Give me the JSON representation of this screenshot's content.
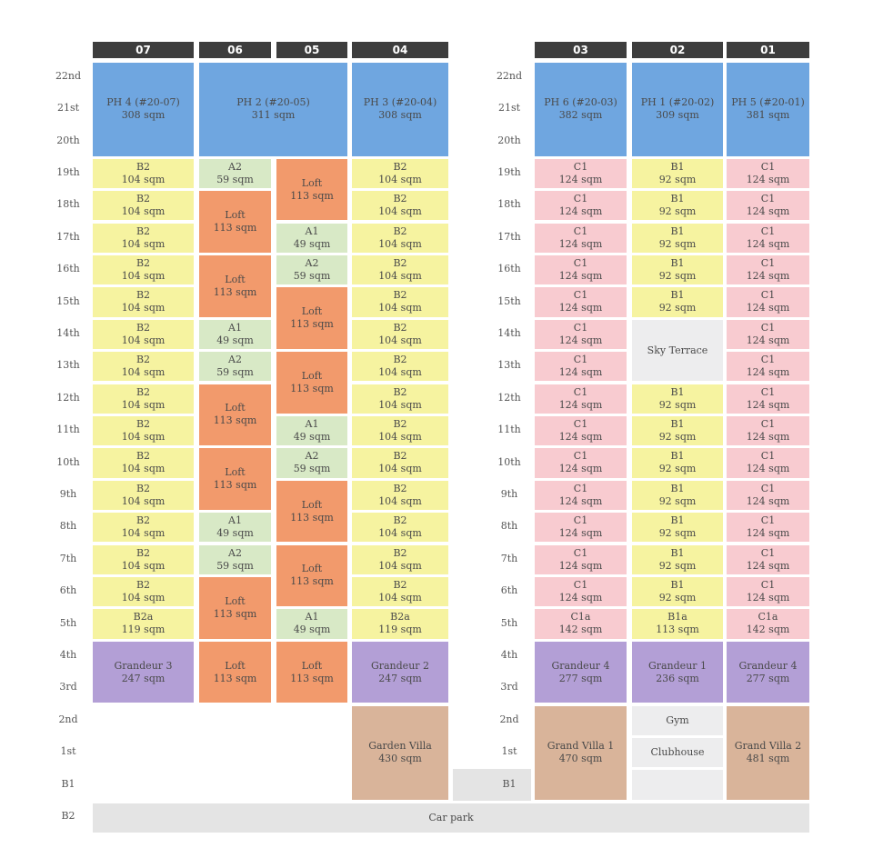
{
  "colors": {
    "header_bg": "#3d3d3d",
    "penthouse": "#6fa6e0",
    "type_a": "#d8e9c6",
    "type_b": "#f6f3a0",
    "type_c": "#f8cbd0",
    "loft": "#f29a6c",
    "grandeur": "#b39fd6",
    "villa": "#d9b49a",
    "amenity": "#ededee",
    "carpark": "#e4e4e4"
  },
  "stacks": [
    "07",
    "06",
    "05",
    "04",
    "03",
    "02",
    "01"
  ],
  "floors": [
    "22nd",
    "21st",
    "20th",
    "19th",
    "18th",
    "17th",
    "16th",
    "15th",
    "14th",
    "13th",
    "12th",
    "11th",
    "10th",
    "9th",
    "8th",
    "7th",
    "6th",
    "5th",
    "4th",
    "3rd",
    "2nd",
    "1st",
    "B1",
    "B2"
  ],
  "units": [
    {
      "stack": "07",
      "top": "22nd",
      "bottom": "20th",
      "kind": "penthouse",
      "name": "PH 4 (#20-07)",
      "area": "308 sqm"
    },
    {
      "stack": "06",
      "stack_to": "05",
      "top": "22nd",
      "bottom": "20th",
      "kind": "penthouse",
      "name": "PH 2 (#20-05)",
      "area": "311 sqm"
    },
    {
      "stack": "04",
      "top": "22nd",
      "bottom": "20th",
      "kind": "penthouse",
      "name": "PH 3 (#20-04)",
      "area": "308 sqm"
    },
    {
      "stack": "03",
      "top": "22nd",
      "bottom": "20th",
      "kind": "penthouse",
      "name": "PH 6 (#20-03)",
      "area": "382 sqm"
    },
    {
      "stack": "02",
      "top": "22nd",
      "bottom": "20th",
      "kind": "penthouse",
      "name": "PH 1 (#20-02)",
      "area": "309 sqm"
    },
    {
      "stack": "01",
      "top": "22nd",
      "bottom": "20th",
      "kind": "penthouse",
      "name": "PH 5 (#20-01)",
      "area": "381 sqm"
    },
    {
      "stack": "07",
      "top": "19th",
      "bottom": "19th",
      "kind": "type_b",
      "name": "B2",
      "area": "104 sqm"
    },
    {
      "stack": "07",
      "top": "18th",
      "bottom": "18th",
      "kind": "type_b",
      "name": "B2",
      "area": "104 sqm"
    },
    {
      "stack": "07",
      "top": "17th",
      "bottom": "17th",
      "kind": "type_b",
      "name": "B2",
      "area": "104 sqm"
    },
    {
      "stack": "07",
      "top": "16th",
      "bottom": "16th",
      "kind": "type_b",
      "name": "B2",
      "area": "104 sqm"
    },
    {
      "stack": "07",
      "top": "15th",
      "bottom": "15th",
      "kind": "type_b",
      "name": "B2",
      "area": "104 sqm"
    },
    {
      "stack": "07",
      "top": "14th",
      "bottom": "14th",
      "kind": "type_b",
      "name": "B2",
      "area": "104 sqm"
    },
    {
      "stack": "07",
      "top": "13th",
      "bottom": "13th",
      "kind": "type_b",
      "name": "B2",
      "area": "104 sqm"
    },
    {
      "stack": "07",
      "top": "12th",
      "bottom": "12th",
      "kind": "type_b",
      "name": "B2",
      "area": "104 sqm"
    },
    {
      "stack": "07",
      "top": "11th",
      "bottom": "11th",
      "kind": "type_b",
      "name": "B2",
      "area": "104 sqm"
    },
    {
      "stack": "07",
      "top": "10th",
      "bottom": "10th",
      "kind": "type_b",
      "name": "B2",
      "area": "104 sqm"
    },
    {
      "stack": "07",
      "top": "9th",
      "bottom": "9th",
      "kind": "type_b",
      "name": "B2",
      "area": "104 sqm"
    },
    {
      "stack": "07",
      "top": "8th",
      "bottom": "8th",
      "kind": "type_b",
      "name": "B2",
      "area": "104 sqm"
    },
    {
      "stack": "07",
      "top": "7th",
      "bottom": "7th",
      "kind": "type_b",
      "name": "B2",
      "area": "104 sqm"
    },
    {
      "stack": "07",
      "top": "6th",
      "bottom": "6th",
      "kind": "type_b",
      "name": "B2",
      "area": "104 sqm"
    },
    {
      "stack": "07",
      "top": "5th",
      "bottom": "5th",
      "kind": "type_b",
      "name": "B2a",
      "area": "119 sqm"
    },
    {
      "stack": "07",
      "top": "4th",
      "bottom": "3rd",
      "kind": "grandeur",
      "name": "Grandeur 3",
      "area": "247 sqm"
    },
    {
      "stack": "06",
      "top": "19th",
      "bottom": "19th",
      "kind": "type_a",
      "name": "A2",
      "area": "59 sqm"
    },
    {
      "stack": "06",
      "top": "18th",
      "bottom": "17th",
      "kind": "loft",
      "name": "Loft",
      "area": "113 sqm"
    },
    {
      "stack": "06",
      "top": "16th",
      "bottom": "15th",
      "kind": "loft",
      "name": "Loft",
      "area": "113 sqm"
    },
    {
      "stack": "06",
      "top": "14th",
      "bottom": "14th",
      "kind": "type_a",
      "name": "A1",
      "area": "49 sqm"
    },
    {
      "stack": "06",
      "top": "13th",
      "bottom": "13th",
      "kind": "type_a",
      "name": "A2",
      "area": "59 sqm"
    },
    {
      "stack": "06",
      "top": "12th",
      "bottom": "11th",
      "kind": "loft",
      "name": "Loft",
      "area": "113 sqm"
    },
    {
      "stack": "06",
      "top": "10th",
      "bottom": "9th",
      "kind": "loft",
      "name": "Loft",
      "area": "113 sqm"
    },
    {
      "stack": "06",
      "top": "8th",
      "bottom": "8th",
      "kind": "type_a",
      "name": "A1",
      "area": "49 sqm"
    },
    {
      "stack": "06",
      "top": "7th",
      "bottom": "7th",
      "kind": "type_a",
      "name": "A2",
      "area": "59 sqm"
    },
    {
      "stack": "06",
      "top": "6th",
      "bottom": "5th",
      "kind": "loft",
      "name": "Loft",
      "area": "113 sqm"
    },
    {
      "stack": "06",
      "top": "4th",
      "bottom": "3rd",
      "kind": "loft",
      "name": "Loft",
      "area": "113 sqm"
    },
    {
      "stack": "05",
      "top": "19th",
      "bottom": "18th",
      "kind": "loft",
      "name": "Loft",
      "area": "113 sqm"
    },
    {
      "stack": "05",
      "top": "17th",
      "bottom": "17th",
      "kind": "type_a",
      "name": "A1",
      "area": "49 sqm"
    },
    {
      "stack": "05",
      "top": "16th",
      "bottom": "16th",
      "kind": "type_a",
      "name": "A2",
      "area": "59 sqm"
    },
    {
      "stack": "05",
      "top": "15th",
      "bottom": "14th",
      "kind": "loft",
      "name": "Loft",
      "area": "113 sqm"
    },
    {
      "stack": "05",
      "top": "13th",
      "bottom": "12th",
      "kind": "loft",
      "name": "Loft",
      "area": "113 sqm"
    },
    {
      "stack": "05",
      "top": "11th",
      "bottom": "11th",
      "kind": "type_a",
      "name": "A1",
      "area": "49 sqm"
    },
    {
      "stack": "05",
      "top": "10th",
      "bottom": "10th",
      "kind": "type_a",
      "name": "A2",
      "area": "59 sqm"
    },
    {
      "stack": "05",
      "top": "9th",
      "bottom": "8th",
      "kind": "loft",
      "name": "Loft",
      "area": "113 sqm"
    },
    {
      "stack": "05",
      "top": "7th",
      "bottom": "6th",
      "kind": "loft",
      "name": "Loft",
      "area": "113 sqm"
    },
    {
      "stack": "05",
      "top": "5th",
      "bottom": "5th",
      "kind": "type_a",
      "name": "A1",
      "area": "49 sqm"
    },
    {
      "stack": "05",
      "top": "4th",
      "bottom": "3rd",
      "kind": "loft",
      "name": "Loft",
      "area": "113 sqm"
    },
    {
      "stack": "04",
      "top": "19th",
      "bottom": "19th",
      "kind": "type_b",
      "name": "B2",
      "area": "104 sqm"
    },
    {
      "stack": "04",
      "top": "18th",
      "bottom": "18th",
      "kind": "type_b",
      "name": "B2",
      "area": "104 sqm"
    },
    {
      "stack": "04",
      "top": "17th",
      "bottom": "17th",
      "kind": "type_b",
      "name": "B2",
      "area": "104 sqm"
    },
    {
      "stack": "04",
      "top": "16th",
      "bottom": "16th",
      "kind": "type_b",
      "name": "B2",
      "area": "104 sqm"
    },
    {
      "stack": "04",
      "top": "15th",
      "bottom": "15th",
      "kind": "type_b",
      "name": "B2",
      "area": "104 sqm"
    },
    {
      "stack": "04",
      "top": "14th",
      "bottom": "14th",
      "kind": "type_b",
      "name": "B2",
      "area": "104 sqm"
    },
    {
      "stack": "04",
      "top": "13th",
      "bottom": "13th",
      "kind": "type_b",
      "name": "B2",
      "area": "104 sqm"
    },
    {
      "stack": "04",
      "top": "12th",
      "bottom": "12th",
      "kind": "type_b",
      "name": "B2",
      "area": "104 sqm"
    },
    {
      "stack": "04",
      "top": "11th",
      "bottom": "11th",
      "kind": "type_b",
      "name": "B2",
      "area": "104 sqm"
    },
    {
      "stack": "04",
      "top": "10th",
      "bottom": "10th",
      "kind": "type_b",
      "name": "B2",
      "area": "104 sqm"
    },
    {
      "stack": "04",
      "top": "9th",
      "bottom": "9th",
      "kind": "type_b",
      "name": "B2",
      "area": "104 sqm"
    },
    {
      "stack": "04",
      "top": "8th",
      "bottom": "8th",
      "kind": "type_b",
      "name": "B2",
      "area": "104 sqm"
    },
    {
      "stack": "04",
      "top": "7th",
      "bottom": "7th",
      "kind": "type_b",
      "name": "B2",
      "area": "104 sqm"
    },
    {
      "stack": "04",
      "top": "6th",
      "bottom": "6th",
      "kind": "type_b",
      "name": "B2",
      "area": "104 sqm"
    },
    {
      "stack": "04",
      "top": "5th",
      "bottom": "5th",
      "kind": "type_b",
      "name": "B2a",
      "area": "119 sqm"
    },
    {
      "stack": "04",
      "top": "4th",
      "bottom": "3rd",
      "kind": "grandeur",
      "name": "Grandeur 2",
      "area": "247 sqm"
    },
    {
      "stack": "04",
      "top": "2nd",
      "bottom": "B1",
      "kind": "villa",
      "name": "Garden Villa",
      "area": "430 sqm"
    },
    {
      "stack": "03",
      "top": "19th",
      "bottom": "19th",
      "kind": "type_c",
      "name": "C1",
      "area": "124 sqm"
    },
    {
      "stack": "03",
      "top": "18th",
      "bottom": "18th",
      "kind": "type_c",
      "name": "C1",
      "area": "124 sqm"
    },
    {
      "stack": "03",
      "top": "17th",
      "bottom": "17th",
      "kind": "type_c",
      "name": "C1",
      "area": "124 sqm"
    },
    {
      "stack": "03",
      "top": "16th",
      "bottom": "16th",
      "kind": "type_c",
      "name": "C1",
      "area": "124 sqm"
    },
    {
      "stack": "03",
      "top": "15th",
      "bottom": "15th",
      "kind": "type_c",
      "name": "C1",
      "area": "124 sqm"
    },
    {
      "stack": "03",
      "top": "14th",
      "bottom": "14th",
      "kind": "type_c",
      "name": "C1",
      "area": "124 sqm"
    },
    {
      "stack": "03",
      "top": "13th",
      "bottom": "13th",
      "kind": "type_c",
      "name": "C1",
      "area": "124 sqm"
    },
    {
      "stack": "03",
      "top": "12th",
      "bottom": "12th",
      "kind": "type_c",
      "name": "C1",
      "area": "124 sqm"
    },
    {
      "stack": "03",
      "top": "11th",
      "bottom": "11th",
      "kind": "type_c",
      "name": "C1",
      "area": "124 sqm"
    },
    {
      "stack": "03",
      "top": "10th",
      "bottom": "10th",
      "kind": "type_c",
      "name": "C1",
      "area": "124 sqm"
    },
    {
      "stack": "03",
      "top": "9th",
      "bottom": "9th",
      "kind": "type_c",
      "name": "C1",
      "area": "124 sqm"
    },
    {
      "stack": "03",
      "top": "8th",
      "bottom": "8th",
      "kind": "type_c",
      "name": "C1",
      "area": "124 sqm"
    },
    {
      "stack": "03",
      "top": "7th",
      "bottom": "7th",
      "kind": "type_c",
      "name": "C1",
      "area": "124 sqm"
    },
    {
      "stack": "03",
      "top": "6th",
      "bottom": "6th",
      "kind": "type_c",
      "name": "C1",
      "area": "124 sqm"
    },
    {
      "stack": "03",
      "top": "5th",
      "bottom": "5th",
      "kind": "type_c",
      "name": "C1a",
      "area": "142 sqm"
    },
    {
      "stack": "03",
      "top": "4th",
      "bottom": "3rd",
      "kind": "grandeur",
      "name": "Grandeur 4",
      "area": "277 sqm"
    },
    {
      "stack": "03",
      "top": "2nd",
      "bottom": "B1",
      "kind": "villa",
      "name": "Grand Villa 1",
      "area": "470 sqm"
    },
    {
      "stack": "02",
      "top": "19th",
      "bottom": "19th",
      "kind": "type_b",
      "name": "B1",
      "area": "92 sqm"
    },
    {
      "stack": "02",
      "top": "18th",
      "bottom": "18th",
      "kind": "type_b",
      "name": "B1",
      "area": "92 sqm"
    },
    {
      "stack": "02",
      "top": "17th",
      "bottom": "17th",
      "kind": "type_b",
      "name": "B1",
      "area": "92 sqm"
    },
    {
      "stack": "02",
      "top": "16th",
      "bottom": "16th",
      "kind": "type_b",
      "name": "B1",
      "area": "92 sqm"
    },
    {
      "stack": "02",
      "top": "15th",
      "bottom": "15th",
      "kind": "type_b",
      "name": "B1",
      "area": "92 sqm"
    },
    {
      "stack": "02",
      "top": "14th",
      "bottom": "13th",
      "kind": "amenity",
      "name": "Sky Terrace",
      "area": ""
    },
    {
      "stack": "02",
      "top": "12th",
      "bottom": "12th",
      "kind": "type_b",
      "name": "B1",
      "area": "92 sqm"
    },
    {
      "stack": "02",
      "top": "11th",
      "bottom": "11th",
      "kind": "type_b",
      "name": "B1",
      "area": "92 sqm"
    },
    {
      "stack": "02",
      "top": "10th",
      "bottom": "10th",
      "kind": "type_b",
      "name": "B1",
      "area": "92 sqm"
    },
    {
      "stack": "02",
      "top": "9th",
      "bottom": "9th",
      "kind": "type_b",
      "name": "B1",
      "area": "92 sqm"
    },
    {
      "stack": "02",
      "top": "8th",
      "bottom": "8th",
      "kind": "type_b",
      "name": "B1",
      "area": "92 sqm"
    },
    {
      "stack": "02",
      "top": "7th",
      "bottom": "7th",
      "kind": "type_b",
      "name": "B1",
      "area": "92 sqm"
    },
    {
      "stack": "02",
      "top": "6th",
      "bottom": "6th",
      "kind": "type_b",
      "name": "B1",
      "area": "92 sqm"
    },
    {
      "stack": "02",
      "top": "5th",
      "bottom": "5th",
      "kind": "type_b",
      "name": "B1a",
      "area": "113 sqm"
    },
    {
      "stack": "02",
      "top": "4th",
      "bottom": "3rd",
      "kind": "grandeur",
      "name": "Grandeur 1",
      "area": "236 sqm"
    },
    {
      "stack": "02",
      "top": "2nd",
      "bottom": "2nd",
      "kind": "amenity",
      "name": "Gym",
      "area": ""
    },
    {
      "stack": "02",
      "top": "1st",
      "bottom": "1st",
      "kind": "amenity",
      "name": "Clubhouse",
      "area": ""
    },
    {
      "stack": "02",
      "top": "B1",
      "bottom": "B1",
      "kind": "amenity",
      "name": "",
      "area": ""
    },
    {
      "stack": "01",
      "top": "19th",
      "bottom": "19th",
      "kind": "type_c",
      "name": "C1",
      "area": "124 sqm"
    },
    {
      "stack": "01",
      "top": "18th",
      "bottom": "18th",
      "kind": "type_c",
      "name": "C1",
      "area": "124 sqm"
    },
    {
      "stack": "01",
      "top": "17th",
      "bottom": "17th",
      "kind": "type_c",
      "name": "C1",
      "area": "124 sqm"
    },
    {
      "stack": "01",
      "top": "16th",
      "bottom": "16th",
      "kind": "type_c",
      "name": "C1",
      "area": "124 sqm"
    },
    {
      "stack": "01",
      "top": "15th",
      "bottom": "15th",
      "kind": "type_c",
      "name": "C1",
      "area": "124 sqm"
    },
    {
      "stack": "01",
      "top": "14th",
      "bottom": "14th",
      "kind": "type_c",
      "name": "C1",
      "area": "124 sqm"
    },
    {
      "stack": "01",
      "top": "13th",
      "bottom": "13th",
      "kind": "type_c",
      "name": "C1",
      "area": "124 sqm"
    },
    {
      "stack": "01",
      "top": "12th",
      "bottom": "12th",
      "kind": "type_c",
      "name": "C1",
      "area": "124 sqm"
    },
    {
      "stack": "01",
      "top": "11th",
      "bottom": "11th",
      "kind": "type_c",
      "name": "C1",
      "area": "124 sqm"
    },
    {
      "stack": "01",
      "top": "10th",
      "bottom": "10th",
      "kind": "type_c",
      "name": "C1",
      "area": "124 sqm"
    },
    {
      "stack": "01",
      "top": "9th",
      "bottom": "9th",
      "kind": "type_c",
      "name": "C1",
      "area": "124 sqm"
    },
    {
      "stack": "01",
      "top": "8th",
      "bottom": "8th",
      "kind": "type_c",
      "name": "C1",
      "area": "124 sqm"
    },
    {
      "stack": "01",
      "top": "7th",
      "bottom": "7th",
      "kind": "type_c",
      "name": "C1",
      "area": "124 sqm"
    },
    {
      "stack": "01",
      "top": "6th",
      "bottom": "6th",
      "kind": "type_c",
      "name": "C1",
      "area": "124 sqm"
    },
    {
      "stack": "01",
      "top": "5th",
      "bottom": "5th",
      "kind": "type_c",
      "name": "C1a",
      "area": "142 sqm"
    },
    {
      "stack": "01",
      "top": "4th",
      "bottom": "3rd",
      "kind": "grandeur",
      "name": "Grandeur 4",
      "area": "277 sqm"
    },
    {
      "stack": "01",
      "top": "2nd",
      "bottom": "B1",
      "kind": "villa",
      "name": "Grand Villa 2",
      "area": "481 sqm"
    }
  ],
  "carpark": {
    "label": "Car park"
  }
}
